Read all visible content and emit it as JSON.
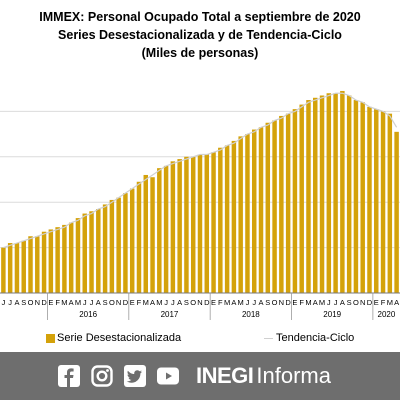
{
  "title": {
    "line1": "IMMEX: Personal Ocupado Total a septiembre de 2020",
    "line2": "Series Desestacionalizada  y de Tendencia-Ciclo",
    "line3": "(Miles de personas)"
  },
  "legend": {
    "series1": "Serie Desestacionalizada",
    "series2": "Tendencia-Ciclo"
  },
  "footer": {
    "brand_strong": "INEGI",
    "brand_light": "Informa",
    "icons": [
      "facebook-icon",
      "instagram-icon",
      "twitter-icon",
      "youtube-icon"
    ]
  },
  "colors": {
    "bar": "#d4a20a",
    "trend": "#d0d0d0",
    "footer_bg": "#6e6e6e"
  },
  "chart_data": {
    "type": "bar",
    "title": "IMMEX: Personal Ocupado Total a septiembre de 2020",
    "grid": true,
    "categories": [
      "J",
      "J",
      "A",
      "S",
      "O",
      "N",
      "D",
      "E",
      "F",
      "M",
      "A",
      "M",
      "J",
      "J",
      "A",
      "S",
      "O",
      "N",
      "D",
      "E",
      "F",
      "M",
      "A",
      "M",
      "J",
      "J",
      "A",
      "S",
      "O",
      "N",
      "D",
      "E",
      "F",
      "M",
      "A",
      "M",
      "J",
      "J",
      "A",
      "S",
      "O",
      "N",
      "D",
      "E",
      "F",
      "M",
      "A",
      "M",
      "J",
      "J",
      "A",
      "S",
      "O",
      "N",
      "D",
      "E",
      "F",
      "M",
      "A"
    ],
    "years": [
      {
        "label": "2016",
        "start": 7,
        "end": 18
      },
      {
        "label": "2017",
        "start": 19,
        "end": 30
      },
      {
        "label": "2018",
        "start": 31,
        "end": 42
      },
      {
        "label": "2019",
        "start": 43,
        "end": 54
      },
      {
        "label": "2020",
        "start": 55,
        "end": 58
      }
    ],
    "series": [
      {
        "name": "Serie Desestacionalizada",
        "values": [
          20,
          22,
          22,
          23,
          25,
          25,
          27,
          28,
          29,
          30,
          31,
          33,
          35,
          36,
          37,
          39,
          41,
          42,
          44,
          46,
          49,
          52,
          51,
          55,
          56,
          58,
          59,
          60,
          60,
          61,
          61,
          62,
          64,
          65,
          67,
          69,
          70,
          72,
          73,
          75,
          76,
          78,
          79,
          81,
          83,
          85,
          86,
          87,
          88,
          88,
          89,
          87,
          85,
          84,
          82,
          81,
          80,
          79,
          71
        ]
      },
      {
        "name": "Tendencia-Ciclo",
        "values": [
          20,
          21,
          22,
          23,
          24,
          25,
          26,
          27,
          28,
          29,
          31,
          32,
          34,
          35,
          37,
          38,
          40,
          42,
          44,
          46,
          48,
          50,
          52,
          54,
          56,
          57,
          58,
          59,
          60,
          61,
          61,
          62,
          63,
          65,
          66,
          68,
          70,
          71,
          73,
          74,
          76,
          77,
          79,
          80,
          82,
          84,
          85,
          86,
          87,
          88,
          88,
          87,
          85,
          84,
          82,
          81,
          80,
          78,
          73
        ]
      }
    ],
    "ylim": [
      0,
      100
    ],
    "legend_position": "bottom"
  }
}
